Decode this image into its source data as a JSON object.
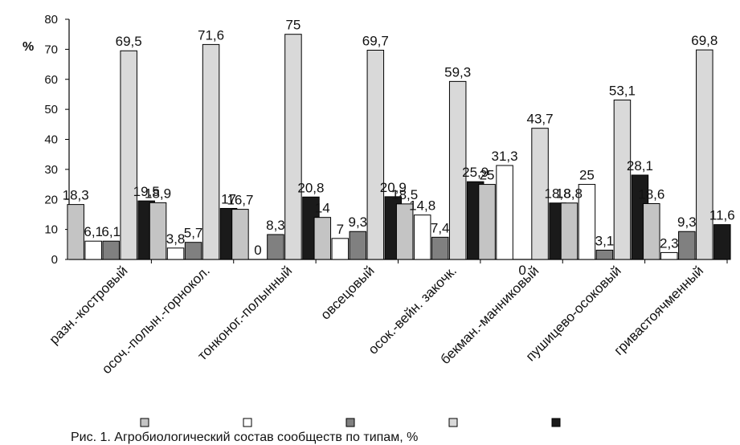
{
  "chart_data": {
    "type": "bar",
    "ylabel": "%",
    "ylim": [
      0,
      80
    ],
    "yticks": [
      "0",
      "10",
      "20",
      "30",
      "40",
      "50",
      "60",
      "70",
      "80"
    ],
    "grid": false,
    "legend_position": "bottom",
    "categories": [
      "разн.-костровый",
      "осоч.-полын.-горнокол.",
      "тонконог.-полынный",
      "овсецовый",
      "осок.-вейн. закочк.",
      "бекман.-манниковый",
      "пушицево-осоковый",
      "гривастоячменный"
    ],
    "series": [
      {
        "color": "#c4c4c4",
        "values": [
          18.3,
          18.9,
          16.7,
          14,
          18.5,
          25,
          18.8,
          18.6
        ],
        "labels": [
          "18,3",
          "18,9",
          "16,7",
          "14",
          "18,5",
          "25",
          "18,8",
          "18,6"
        ]
      },
      {
        "color": "#ffffff",
        "values": [
          6.1,
          3.8,
          0,
          7,
          14.8,
          31.3,
          25,
          2.3
        ],
        "labels": [
          "6,1",
          "3,8",
          "0",
          "7",
          "14,8",
          "31,3",
          "25",
          "2,3"
        ]
      },
      {
        "color": "#808080",
        "values": [
          6.1,
          5.7,
          8.3,
          9.3,
          7.4,
          0,
          3.1,
          9.3
        ],
        "labels": [
          "6,1",
          "5,7",
          "8,3",
          "9,3",
          "7,4",
          "0",
          "3,1",
          "9,3"
        ]
      },
      {
        "color": "#d9d9d9",
        "values": [
          69.5,
          71.6,
          75,
          69.7,
          59.3,
          43.7,
          53.1,
          69.8
        ],
        "labels": [
          "69,5",
          "71,6",
          "75",
          "69,7",
          "59,3",
          "43,7",
          "53,1",
          "69,8"
        ]
      },
      {
        "color": "#1a1a1a",
        "values": [
          19.5,
          17,
          20.8,
          20.9,
          25.9,
          18.8,
          28.1,
          11.6
        ],
        "labels": [
          "19,5",
          "17",
          "20,8",
          "20,9",
          "25,9",
          "18,8",
          "28,1",
          "11,6"
        ]
      }
    ]
  },
  "caption": "Рис. 1. Агробиологический состав сообществ по типам, %"
}
